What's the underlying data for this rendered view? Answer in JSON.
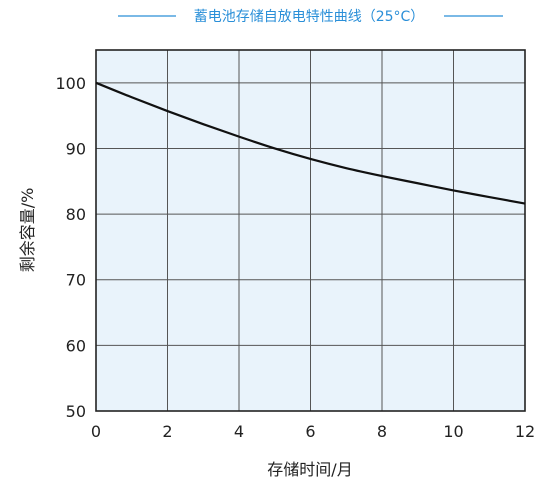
{
  "chart_data": {
    "type": "line",
    "title": "蓄电池存储自放电特性曲线（25°C）",
    "xlabel": "存储时间/月",
    "ylabel": "剩余容量/%",
    "xlim": [
      0,
      12
    ],
    "ylim": [
      50,
      105
    ],
    "x_ticks": [
      0,
      2,
      4,
      6,
      8,
      10,
      12
    ],
    "y_ticks": [
      50,
      60,
      70,
      80,
      90,
      100
    ],
    "grid": true,
    "legend": "none",
    "colors": {
      "title": "#2a8fd8",
      "plot_background": "#e9f3fb",
      "grid": "#555555",
      "axis": "#222222",
      "line": "#111111"
    },
    "series": [
      {
        "x": [
          0,
          1,
          2,
          3,
          4,
          5,
          6,
          7,
          8,
          9,
          10,
          11,
          12
        ],
        "y": [
          100,
          97.8,
          95.7,
          93.7,
          91.8,
          90.0,
          88.4,
          87.0,
          85.8,
          84.7,
          83.6,
          82.6,
          81.6
        ]
      }
    ]
  }
}
